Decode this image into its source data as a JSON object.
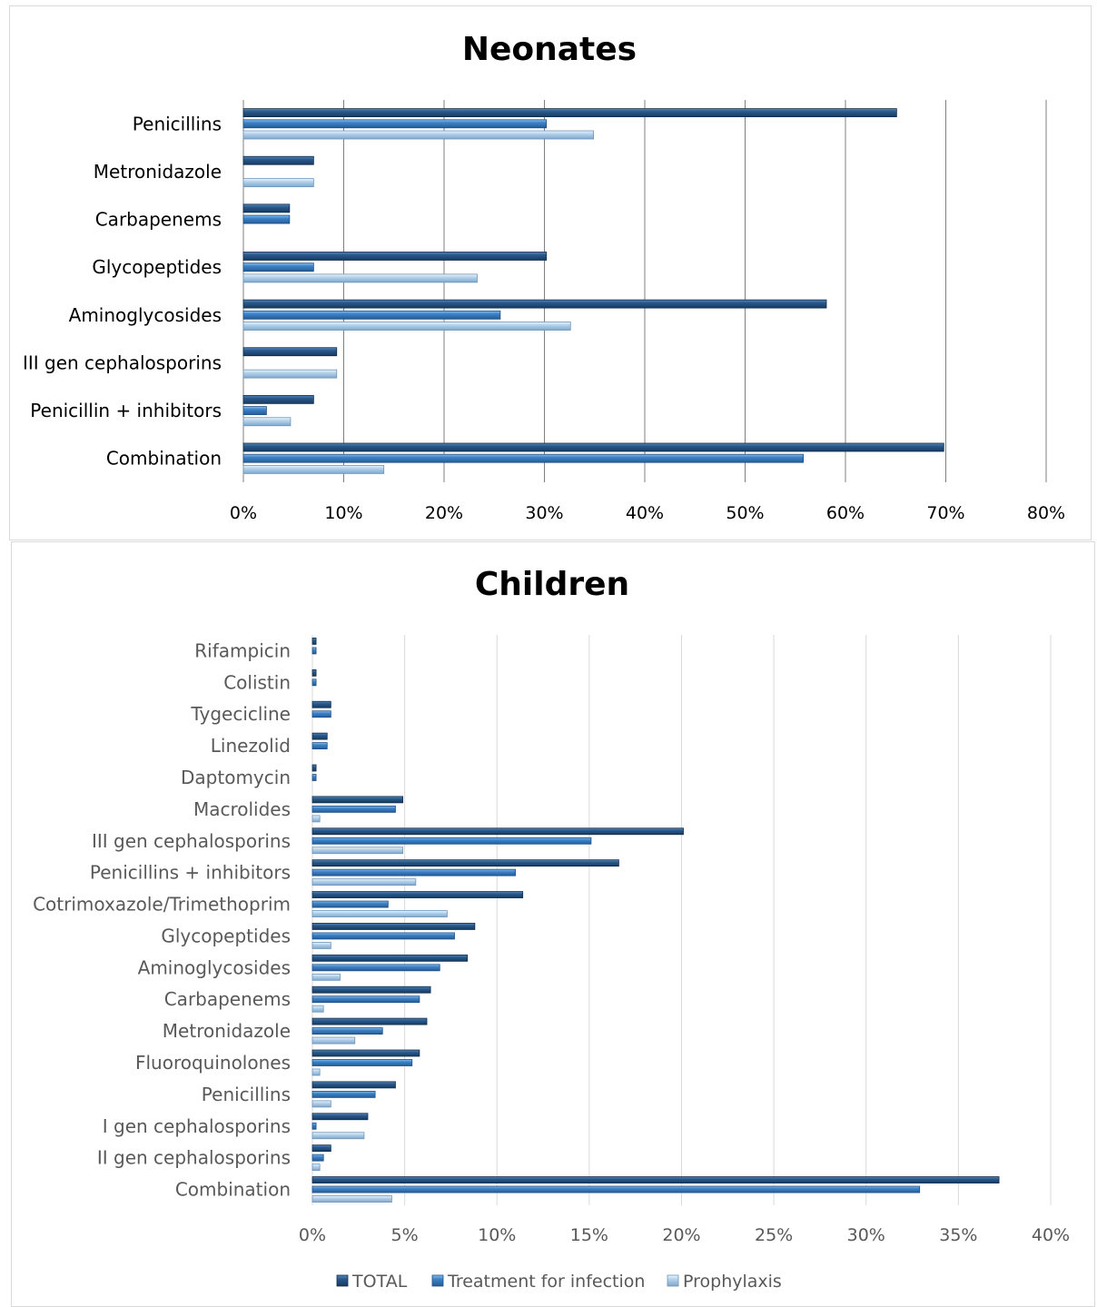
{
  "colors": {
    "total": "#1f4e79",
    "treatment": "#3f84c8",
    "prophylaxis": "#b7d4ec"
  },
  "chart_data": [
    {
      "type": "bar",
      "orientation": "horizontal",
      "title": "Neonates",
      "xlim": [
        0,
        80
      ],
      "xticks": [
        "0%",
        "10%",
        "20%",
        "30%",
        "40%",
        "50%",
        "60%",
        "70%",
        "80%"
      ],
      "grid": true,
      "categories": [
        "Penicillins",
        "Metronidazole",
        "Carbapenems",
        "Glycopeptides",
        "Aminoglycosides",
        "III gen cephalosporins",
        "Penicillin + inhibitors",
        "Combination"
      ],
      "series": [
        {
          "name": "TOTAL",
          "values": [
            65.1,
            7.0,
            4.6,
            30.2,
            58.1,
            9.3,
            7.0,
            69.8
          ]
        },
        {
          "name": "Treatment for infection",
          "values": [
            30.2,
            0,
            4.6,
            7.0,
            25.6,
            0,
            2.3,
            55.8
          ]
        },
        {
          "name": "Prophylaxis",
          "values": [
            34.9,
            7.0,
            0,
            23.3,
            32.6,
            9.3,
            4.7,
            14.0
          ]
        }
      ]
    },
    {
      "type": "bar",
      "orientation": "horizontal",
      "title": "Children",
      "xlim": [
        0,
        40
      ],
      "xticks": [
        "0%",
        "5%",
        "10%",
        "15%",
        "20%",
        "25%",
        "30%",
        "35%",
        "40%"
      ],
      "grid": true,
      "legend": "bottom",
      "categories": [
        "Rifampicin",
        "Colistin",
        "Tygecicline",
        "Linezolid",
        "Daptomycin",
        "Macrolides",
        "III gen cephalosporins",
        "Penicillins + inhibitors",
        "Cotrimoxazole/Trimethoprim",
        "Glycopeptides",
        "Aminoglycosides",
        "Carbapenems",
        "Metronidazole",
        "Fluoroquinolones",
        "Penicillins",
        "I gen cephalosporins",
        "II gen cephalosporins",
        "Combination"
      ],
      "series": [
        {
          "name": "TOTAL",
          "values": [
            0.2,
            0.2,
            1.0,
            0.8,
            0.2,
            4.9,
            20.1,
            16.6,
            11.4,
            8.8,
            8.4,
            6.4,
            6.2,
            5.8,
            4.5,
            3.0,
            1.0,
            37.2
          ]
        },
        {
          "name": "Treatment for infection",
          "values": [
            0.2,
            0.2,
            1.0,
            0.8,
            0.2,
            4.5,
            15.1,
            11.0,
            4.1,
            7.7,
            6.9,
            5.8,
            3.8,
            5.4,
            3.4,
            0.2,
            0.6,
            32.9
          ]
        },
        {
          "name": "Prophylaxis",
          "values": [
            0,
            0,
            0,
            0,
            0,
            0.4,
            4.9,
            5.6,
            7.3,
            1.0,
            1.5,
            0.6,
            2.3,
            0.4,
            1.0,
            2.8,
            0.4,
            4.3
          ]
        }
      ]
    }
  ]
}
